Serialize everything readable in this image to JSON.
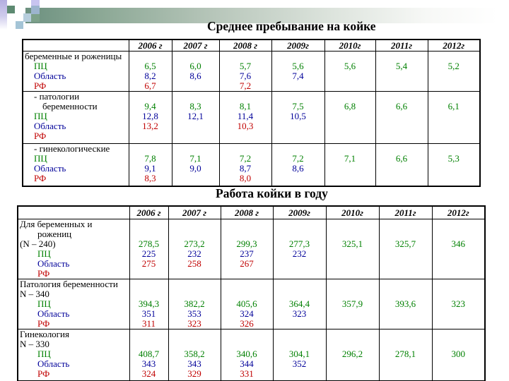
{
  "palette": {
    "green": "#008000",
    "blue": "#000099",
    "red": "#C00000",
    "black": "#000000",
    "bar_left": "#6D9180",
    "decor_green": "#5D8A71",
    "decor_lavender": "#C8C4F0",
    "decor_bluegrey": "#9CB4CE",
    "decor_ltblue": "#B7CEDD"
  },
  "titles": {
    "table1": "Среднее пребывание на койке",
    "table2": "Работа койки в году"
  },
  "years": [
    "2006 г",
    "2007 г",
    "2008 г",
    "2009г",
    "2010г",
    "2011г",
    "2012г"
  ],
  "table1": {
    "groups": [
      {
        "labels": [
          {
            "text": "беременные и роженицы",
            "color": "black",
            "indent": 0
          },
          {
            "text": "ПЦ",
            "color": "green",
            "indent": 1
          },
          {
            "text": "Область",
            "color": "blue",
            "indent": 1
          },
          {
            "text": "РФ",
            "color": "red",
            "indent": 1
          }
        ],
        "values": [
          [
            "6,5",
            "8,2",
            "6,7"
          ],
          [
            "6,0",
            "8,6"
          ],
          [
            "5,7",
            "7,6",
            "7,2"
          ],
          [
            "5,6",
            "7,4"
          ],
          [
            "5,6"
          ],
          [
            "5,4"
          ],
          [
            "5,2"
          ]
        ]
      },
      {
        "labels": [
          {
            "text": "- патологии",
            "color": "black",
            "indent": 1
          },
          {
            "text": "беременности",
            "color": "black",
            "indent": 2
          },
          {
            "text": "ПЦ",
            "color": "green",
            "indent": 1
          },
          {
            "text": "Область",
            "color": "blue",
            "indent": 1
          },
          {
            "text": "РФ",
            "color": "red",
            "indent": 1
          }
        ],
        "values": [
          [
            "9,4",
            "12,8",
            "13,2"
          ],
          [
            "8,3",
            "12,1"
          ],
          [
            "8,1",
            "11,4",
            "10,3"
          ],
          [
            "7,5",
            "10,5"
          ],
          [
            "6,8"
          ],
          [
            "6,6"
          ],
          [
            "6,1"
          ]
        ]
      },
      {
        "labels": [
          {
            "text": "- гинекологические",
            "color": "black",
            "indent": 1
          },
          {
            "text": "ПЦ",
            "color": "green",
            "indent": 1
          },
          {
            "text": "Область",
            "color": "blue",
            "indent": 1
          },
          {
            "text": "РФ",
            "color": "red",
            "indent": 1
          }
        ],
        "values": [
          [
            "7,8",
            "9,1",
            "8,3"
          ],
          [
            "7,1",
            "9,0"
          ],
          [
            "7,2",
            "8,7",
            "8,0"
          ],
          [
            "7,2",
            "8,6"
          ],
          [
            "7,1"
          ],
          [
            "6,6"
          ],
          [
            "5,3"
          ]
        ]
      }
    ]
  },
  "table2": {
    "groups": [
      {
        "labels": [
          {
            "text": "Для беременных и",
            "color": "black",
            "indent": 0
          },
          {
            "text": "рожениц",
            "color": "black",
            "indent": 2
          },
          {
            "text": "(N – 240)",
            "color": "black",
            "indent": 0
          },
          {
            "text": "ПЦ",
            "color": "green",
            "indent": 2
          },
          {
            "text": "Область",
            "color": "blue",
            "indent": 2
          },
          {
            "text": "РФ",
            "color": "red",
            "indent": 2
          }
        ],
        "values": [
          [
            "278,5",
            "225",
            "275"
          ],
          [
            "273,2",
            "232",
            "258"
          ],
          [
            "299,3",
            "237",
            "267"
          ],
          [
            "277,3",
            "232"
          ],
          [
            "325,1"
          ],
          [
            "325,7"
          ],
          [
            "346"
          ]
        ]
      },
      {
        "labels": [
          {
            "text": "Патология беременности",
            "color": "black",
            "indent": 0
          },
          {
            "text": "N – 340",
            "color": "black",
            "indent": 0
          },
          {
            "text": "ПЦ",
            "color": "green",
            "indent": 2
          },
          {
            "text": "Область",
            "color": "blue",
            "indent": 2
          },
          {
            "text": "РФ",
            "color": "red",
            "indent": 2
          }
        ],
        "values": [
          [
            "394,3",
            "351",
            "311"
          ],
          [
            "382,2",
            "353",
            "323"
          ],
          [
            "405,6",
            "324",
            "326"
          ],
          [
            "364,4",
            "323"
          ],
          [
            "357,9"
          ],
          [
            "393,6"
          ],
          [
            "323"
          ]
        ]
      },
      {
        "labels": [
          {
            "text": "Гинекология",
            "color": "black",
            "indent": 0
          },
          {
            "text": "N – 330",
            "color": "black",
            "indent": 0
          },
          {
            "text": "ПЦ",
            "color": "green",
            "indent": 2
          },
          {
            "text": "Область",
            "color": "blue",
            "indent": 2
          },
          {
            "text": "РФ",
            "color": "red",
            "indent": 2
          }
        ],
        "values": [
          [
            "408,7",
            "343",
            "324"
          ],
          [
            "358,2",
            "343",
            "329"
          ],
          [
            "340,6",
            "344",
            "331"
          ],
          [
            "304,1",
            "352"
          ],
          [
            "296,2"
          ],
          [
            "278,1"
          ],
          [
            "300"
          ]
        ]
      }
    ]
  }
}
